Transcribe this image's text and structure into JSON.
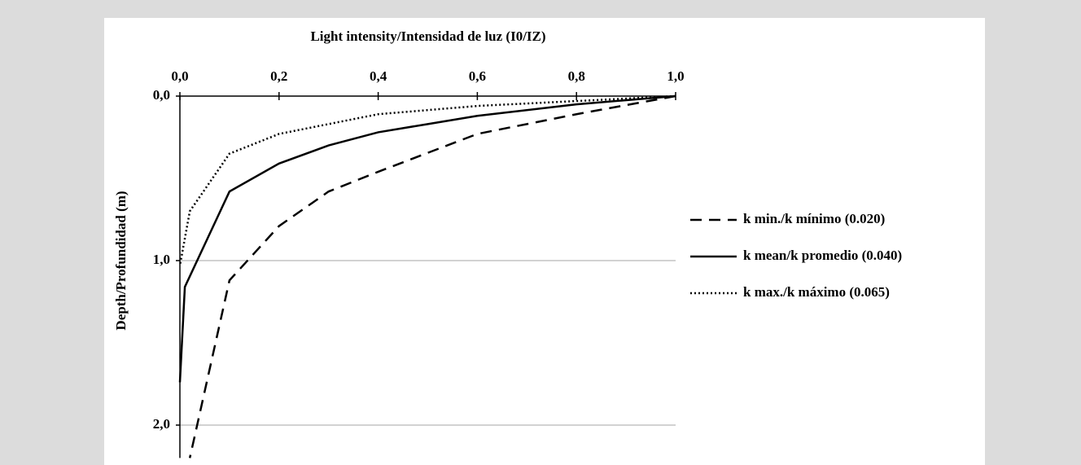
{
  "chart_data": {
    "type": "line",
    "xlabel": "Light intensity/Intensidad de luz (I0/IZ)",
    "ylabel": "Depth/Profundidad (m)",
    "xlim": [
      0,
      1
    ],
    "ylim": [
      0,
      2.2
    ],
    "y_inverted": true,
    "x_axis_position": "top",
    "xticks": [
      {
        "value": 0,
        "label": "0,0"
      },
      {
        "value": 0.2,
        "label": "0,2"
      },
      {
        "value": 0.4,
        "label": "0,4"
      },
      {
        "value": 0.6,
        "label": "0,6"
      },
      {
        "value": 0.8,
        "label": "0,8"
      },
      {
        "value": 1,
        "label": "1,0"
      }
    ],
    "yticks": [
      {
        "value": 0,
        "label": "0,0"
      },
      {
        "value": 1,
        "label": "1,0"
      },
      {
        "value": 2,
        "label": "2,0"
      }
    ],
    "grid": true,
    "series": [
      {
        "name": "k min./k mínimo (0.020)",
        "color": "#000000",
        "style": "dashed",
        "x": [
          1,
          0.8,
          0.6,
          0.4,
          0.3,
          0.2,
          0.1,
          0.02
        ],
        "values": [
          0,
          0.11,
          0.23,
          0.46,
          0.58,
          0.79,
          1.12,
          2.2
        ]
      },
      {
        "name": "k mean/k promedio (0.040)",
        "color": "#000000",
        "style": "solid",
        "x": [
          1,
          0.8,
          0.6,
          0.5,
          0.4,
          0.3,
          0.2,
          0.1,
          0.01,
          0
        ],
        "values": [
          0,
          0.05,
          0.12,
          0.17,
          0.22,
          0.3,
          0.41,
          0.58,
          1.16,
          1.74
        ]
      },
      {
        "name": "k max./k máximo (0.065)",
        "color": "#000000",
        "style": "dotted",
        "x": [
          1,
          0.6,
          0.4,
          0.3,
          0.2,
          0.1,
          0.02,
          0
        ],
        "values": [
          0,
          0.06,
          0.11,
          0.17,
          0.23,
          0.35,
          0.7,
          1.03
        ]
      }
    ]
  }
}
